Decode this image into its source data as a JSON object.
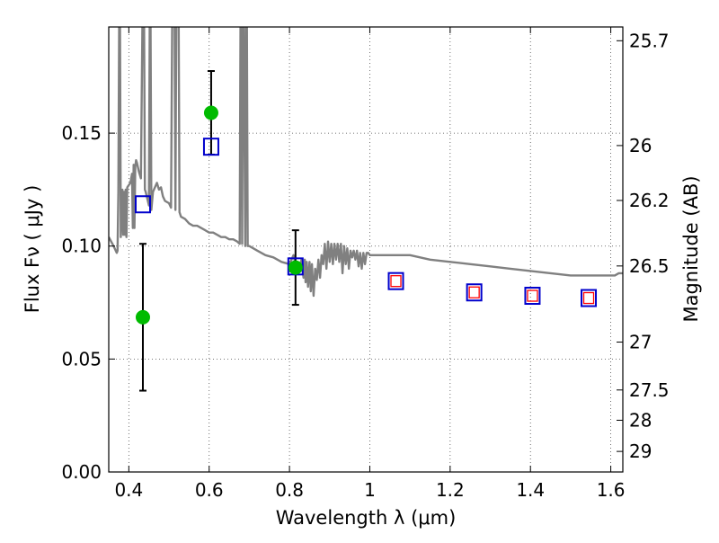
{
  "chart_data": {
    "type": "scatter",
    "title": "",
    "xlabel": "Wavelength  λ (μm)",
    "ylabel": "Flux  Fν  ( μJy )",
    "y2label": "Magnitude (AB)",
    "xlim": [
      0.35,
      1.63
    ],
    "ylim": [
      0.0,
      0.197
    ],
    "grid": true,
    "x_ticks": [
      0.4,
      0.6,
      0.8,
      1.0,
      1.2,
      1.4,
      1.6
    ],
    "x_tick_labels": [
      "0.4",
      "0.6",
      "0.8",
      "1",
      "1.2",
      "1.4",
      "1.6"
    ],
    "y_ticks": [
      0.0,
      0.05,
      0.1,
      0.15
    ],
    "y_tick_labels": [
      "0.00",
      "0.05",
      "0.10",
      "0.15"
    ],
    "y2_ticks": [
      {
        "label": "25.7",
        "flux": 0.1909
      },
      {
        "label": "26",
        "flux": 0.1445
      },
      {
        "label": "26.2",
        "flux": 0.1202
      },
      {
        "label": "26.5",
        "flux": 0.0912
      },
      {
        "label": "27",
        "flux": 0.0575
      },
      {
        "label": "27.5",
        "flux": 0.0363
      },
      {
        "label": "28",
        "flux": 0.0229
      },
      {
        "label": "29",
        "flux": 0.0091
      }
    ],
    "series": [
      {
        "kind": "sed-model",
        "color": "#808080",
        "x": [
          0.35,
          0.362,
          0.37,
          0.372,
          0.374,
          0.376,
          0.378,
          0.38,
          0.382,
          0.384,
          0.386,
          0.388,
          0.39,
          0.392,
          0.394,
          0.396,
          0.4,
          0.404,
          0.408,
          0.41,
          0.412,
          0.414,
          0.416,
          0.418,
          0.42,
          0.425,
          0.43,
          0.434,
          0.436,
          0.438,
          0.44,
          0.442,
          0.446,
          0.45,
          0.452,
          0.454,
          0.456,
          0.46,
          0.47,
          0.475,
          0.48,
          0.485,
          0.49,
          0.5,
          0.505,
          0.508,
          0.51,
          0.512,
          0.514,
          0.516,
          0.518,
          0.52,
          0.522,
          0.524,
          0.526,
          0.53,
          0.54,
          0.55,
          0.56,
          0.57,
          0.58,
          0.59,
          0.6,
          0.61,
          0.62,
          0.63,
          0.64,
          0.65,
          0.66,
          0.67,
          0.676,
          0.678,
          0.68,
          0.682,
          0.684,
          0.686,
          0.69,
          0.692,
          0.694,
          0.696,
          0.7,
          0.72,
          0.74,
          0.76,
          0.78,
          0.8,
          0.81,
          0.82,
          0.83,
          0.835,
          0.838,
          0.84,
          0.843,
          0.846,
          0.85,
          0.853,
          0.856,
          0.86,
          0.864,
          0.868,
          0.872,
          0.876,
          0.88,
          0.884,
          0.888,
          0.892,
          0.896,
          0.9,
          0.904,
          0.908,
          0.912,
          0.916,
          0.92,
          0.924,
          0.928,
          0.932,
          0.936,
          0.94,
          0.944,
          0.948,
          0.952,
          0.956,
          0.96,
          0.964,
          0.968,
          0.972,
          0.976,
          0.98,
          0.984,
          0.988,
          0.992,
          0.996,
          1.0,
          1.05,
          1.1,
          1.15,
          1.2,
          1.25,
          1.3,
          1.35,
          1.4,
          1.45,
          1.5,
          1.55,
          1.6,
          1.61,
          1.62,
          1.63
        ],
        "y": [
          0.104,
          0.1,
          0.097,
          0.098,
          0.124,
          0.2,
          0.2,
          0.104,
          0.115,
          0.125,
          0.105,
          0.124,
          0.105,
          0.125,
          0.104,
          0.126,
          0.127,
          0.128,
          0.132,
          0.108,
          0.136,
          0.108,
          0.135,
          0.138,
          0.137,
          0.133,
          0.13,
          0.2,
          0.2,
          0.2,
          0.125,
          0.124,
          0.121,
          0.118,
          0.2,
          0.2,
          0.116,
          0.124,
          0.128,
          0.125,
          0.126,
          0.122,
          0.12,
          0.119,
          0.117,
          0.2,
          0.2,
          0.2,
          0.2,
          0.116,
          0.2,
          0.2,
          0.2,
          0.2,
          0.115,
          0.113,
          0.112,
          0.11,
          0.109,
          0.109,
          0.108,
          0.107,
          0.106,
          0.106,
          0.105,
          0.104,
          0.104,
          0.103,
          0.103,
          0.102,
          0.101,
          0.2,
          0.2,
          0.101,
          0.2,
          0.2,
          0.1,
          0.2,
          0.2,
          0.1,
          0.1,
          0.098,
          0.096,
          0.095,
          0.093,
          0.092,
          0.096,
          0.088,
          0.094,
          0.086,
          0.094,
          0.084,
          0.093,
          0.082,
          0.093,
          0.08,
          0.092,
          0.078,
          0.09,
          0.085,
          0.094,
          0.086,
          0.096,
          0.092,
          0.101,
          0.09,
          0.102,
          0.093,
          0.101,
          0.092,
          0.101,
          0.094,
          0.101,
          0.093,
          0.101,
          0.088,
          0.1,
          0.092,
          0.099,
          0.09,
          0.098,
          0.095,
          0.098,
          0.094,
          0.098,
          0.091,
          0.097,
          0.09,
          0.097,
          0.092,
          0.097,
          0.097,
          0.096,
          0.096,
          0.096,
          0.094,
          0.093,
          0.092,
          0.091,
          0.09,
          0.089,
          0.088,
          0.087,
          0.087,
          0.087,
          0.087,
          0.088,
          0.088
        ]
      },
      {
        "kind": "observed",
        "color": "#00bb00",
        "x": [
          0.435,
          0.605,
          0.815
        ],
        "y": [
          0.0685,
          0.159,
          0.0905
        ],
        "yerr": [
          0.0325,
          0.0185,
          0.0165
        ]
      },
      {
        "kind": "model-bandpass",
        "color": "#0000cc",
        "x": [
          0.435,
          0.605,
          0.815,
          1.065,
          1.26,
          1.405,
          1.545
        ],
        "y": [
          0.1185,
          0.144,
          0.091,
          0.0845,
          0.0795,
          0.078,
          0.077
        ]
      },
      {
        "kind": "model-bandpass-inner",
        "color": "#ff0000",
        "x": [
          1.065,
          1.26,
          1.405,
          1.545
        ],
        "y": [
          0.0845,
          0.0795,
          0.078,
          0.077
        ]
      }
    ]
  }
}
